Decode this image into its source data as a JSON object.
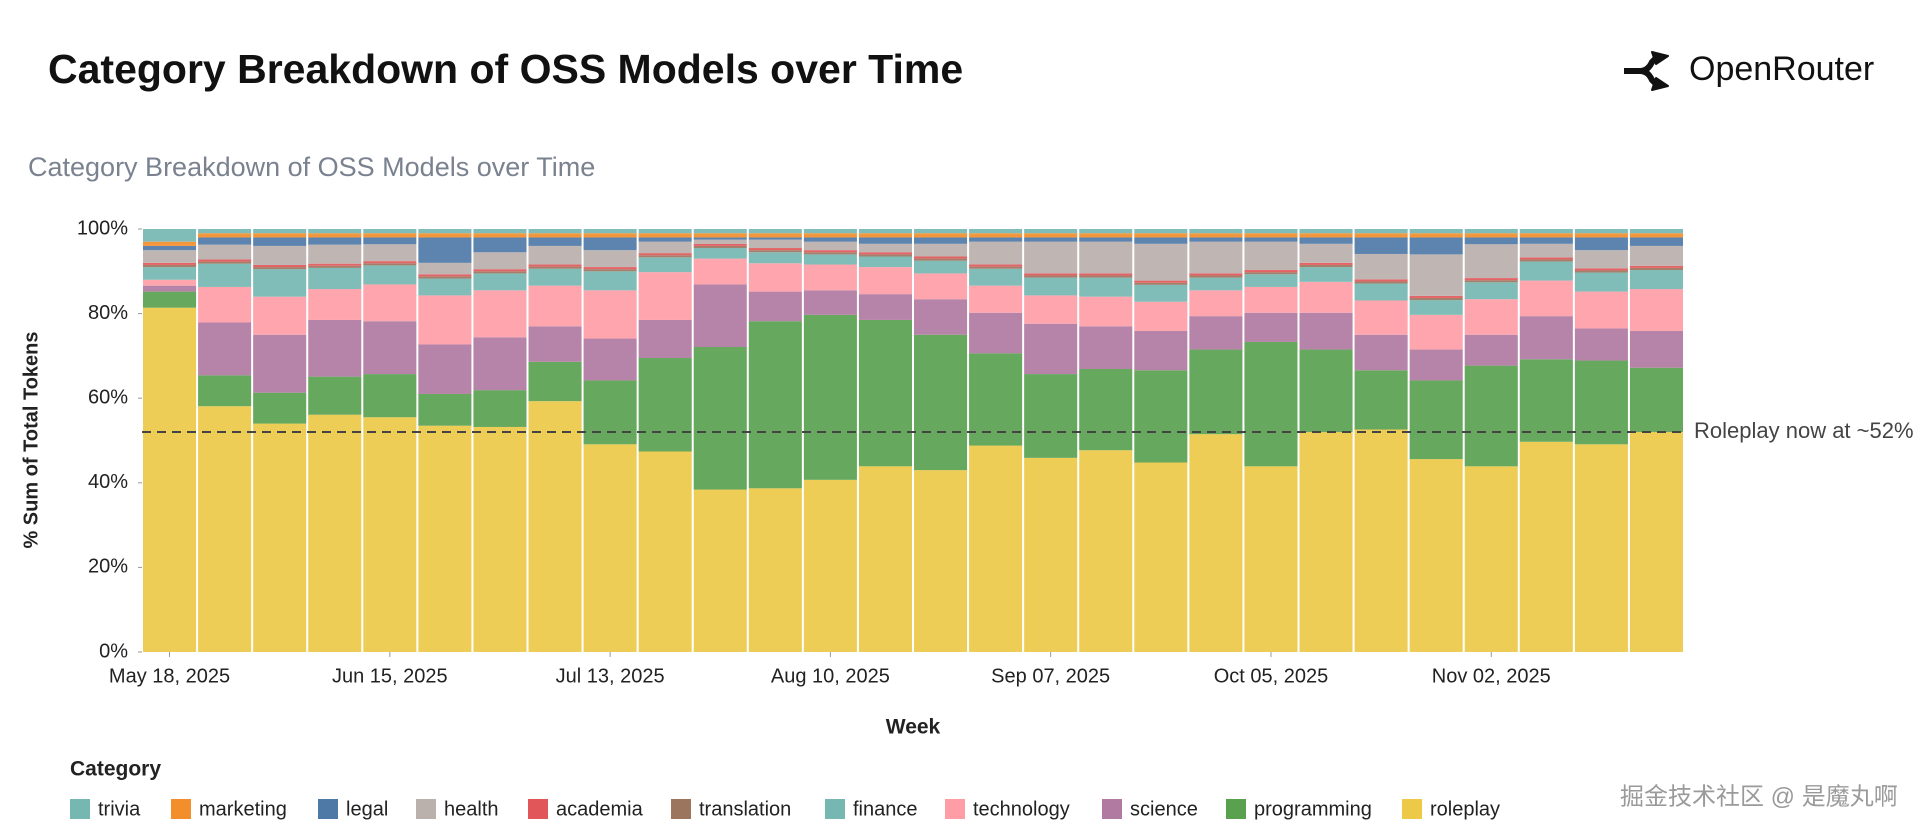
{
  "header": {
    "title": "Category Breakdown of OSS Models over Time",
    "brand": "OpenRouter"
  },
  "watermark": "掘金技术社区 @ 是魔丸啊",
  "chart_data": {
    "type": "stacked_bar",
    "title": "Category Breakdown of OSS Models over Time",
    "y_label": "% Sum of Total Tokens",
    "x_label": "Week",
    "legend_title": "Category",
    "categories": [
      "May 18, 2025",
      null,
      null,
      null,
      "Jun 15, 2025",
      null,
      null,
      null,
      "Jul 13, 2025",
      null,
      null,
      null,
      "Aug 10, 2025",
      null,
      null,
      null,
      "Sep 07, 2025",
      null,
      null,
      null,
      "Oct 05, 2025",
      null,
      null,
      null,
      "Nov 02, 2025",
      null,
      null,
      null
    ],
    "ylim": [
      0,
      100
    ],
    "yticks": [
      {
        "value": 0,
        "label": "0%"
      },
      {
        "value": 20,
        "label": "20%"
      },
      {
        "value": 40,
        "label": "40%"
      },
      {
        "value": 60,
        "label": "60%"
      },
      {
        "value": 80,
        "label": "80%"
      },
      {
        "value": 100,
        "label": "100%"
      }
    ],
    "reference_line": {
      "value": 52,
      "label": "Roleplay now at ~52%"
    },
    "series": [
      {
        "name": "trivia",
        "color": "#76b7b2",
        "values": [
          3,
          1,
          1,
          1,
          1,
          1,
          1,
          1,
          1,
          1,
          1,
          1,
          1,
          1,
          1,
          1,
          1,
          1,
          1,
          1,
          1,
          1,
          1,
          1,
          1,
          1,
          1,
          1
        ]
      },
      {
        "name": "marketing",
        "color": "#f28e2b",
        "values": [
          1,
          1,
          1,
          1,
          1,
          1,
          1,
          1,
          1,
          1,
          1,
          1,
          1,
          1,
          1,
          1,
          1,
          1,
          1,
          1,
          1,
          1,
          1,
          1,
          1,
          1,
          1,
          1
        ]
      },
      {
        "name": "legal",
        "color": "#4e79a7",
        "values": [
          1,
          1.7,
          2,
          1.7,
          1.6,
          6,
          3.5,
          2,
          3,
          1,
          0.5,
          0.5,
          1,
          1.5,
          1.5,
          1,
          1,
          1,
          1.5,
          1,
          1,
          1.5,
          3.9,
          4,
          1.6,
          1.5,
          3,
          2
        ]
      },
      {
        "name": "health",
        "color": "#bab0ac",
        "values": [
          3,
          3.5,
          4.5,
          4.5,
          4,
          2.7,
          4,
          4.4,
          4,
          2.7,
          1,
          2,
          2,
          2,
          3,
          5.4,
          7.5,
          7.5,
          8.7,
          7.5,
          6.7,
          4.5,
          6,
          9.8,
          8,
          3.2,
          4.3,
          4.7
        ]
      },
      {
        "name": "academia",
        "color": "#e15759",
        "values": [
          0.5,
          0.5,
          0.5,
          0.5,
          0.5,
          0.5,
          0.5,
          0.5,
          0.5,
          0.5,
          0.5,
          0.5,
          0.5,
          0.5,
          0.5,
          0.5,
          0.5,
          0.5,
          0.5,
          0.5,
          0.5,
          0.5,
          0.5,
          0.5,
          0.5,
          0.5,
          0.5,
          0.5
        ]
      },
      {
        "name": "translation",
        "color": "#9c755f",
        "values": [
          0.5,
          0.5,
          0.5,
          0.5,
          0.5,
          0.5,
          0.5,
          0.5,
          0.5,
          0.5,
          0.5,
          0.5,
          0.5,
          0.5,
          0.5,
          0.5,
          0.5,
          0.5,
          0.5,
          0.5,
          0.5,
          0.5,
          0.5,
          0.5,
          0.5,
          0.5,
          0.5,
          0.5
        ]
      },
      {
        "name": "finance",
        "color": "#76b7b2",
        "values": [
          3,
          5.5,
          6.5,
          5,
          4.5,
          4,
          4,
          4,
          4.5,
          3.5,
          2.5,
          2.6,
          2.4,
          2.5,
          3,
          4,
          4.2,
          4.5,
          4,
          3,
          3,
          3.5,
          4,
          3.5,
          4,
          4.5,
          4.5,
          4.5
        ]
      },
      {
        "name": "technology",
        "color": "#ff9da7",
        "values": [
          1.4,
          8.4,
          9,
          7.3,
          8.7,
          11.6,
          11.1,
          9.6,
          11.4,
          11.3,
          6.1,
          6.7,
          6.1,
          6.4,
          6.1,
          6.4,
          6.7,
          7,
          6.9,
          6.1,
          6.1,
          7.3,
          8.1,
          8.2,
          8.4,
          8.4,
          8.7,
          9.9
        ]
      },
      {
        "name": "science",
        "color": "#b07aa1",
        "values": [
          1.4,
          12.5,
          13.7,
          13.4,
          12.5,
          11.7,
          12.5,
          8.4,
          9.9,
          9,
          14.8,
          7,
          5.8,
          6.1,
          8.4,
          9.6,
          11.9,
          10.1,
          9.3,
          7.9,
          6.9,
          8.7,
          8.4,
          7.3,
          7.3,
          10.2,
          7.6,
          8.7
        ]
      },
      {
        "name": "programming",
        "color": "#59a14f",
        "values": [
          3.8,
          7.3,
          7.3,
          9,
          10.2,
          7.5,
          8.7,
          9.3,
          15.1,
          22.1,
          33.7,
          39.5,
          39,
          34.6,
          32,
          21.8,
          19.8,
          19.2,
          21.8,
          20,
          29.4,
          19.5,
          14,
          18.6,
          23.8,
          19.5,
          19.8,
          15.2
        ]
      },
      {
        "name": "roleplay",
        "color": "#edc948",
        "values": [
          81.4,
          58.1,
          54,
          56.1,
          55.5,
          53.5,
          53.2,
          59.3,
          49.1,
          47.4,
          38.4,
          38.7,
          40.7,
          43.9,
          43,
          48.8,
          45.9,
          47.7,
          44.8,
          51.5,
          43.9,
          52,
          52.6,
          45.6,
          43.9,
          49.7,
          49.1,
          52
        ]
      }
    ]
  }
}
